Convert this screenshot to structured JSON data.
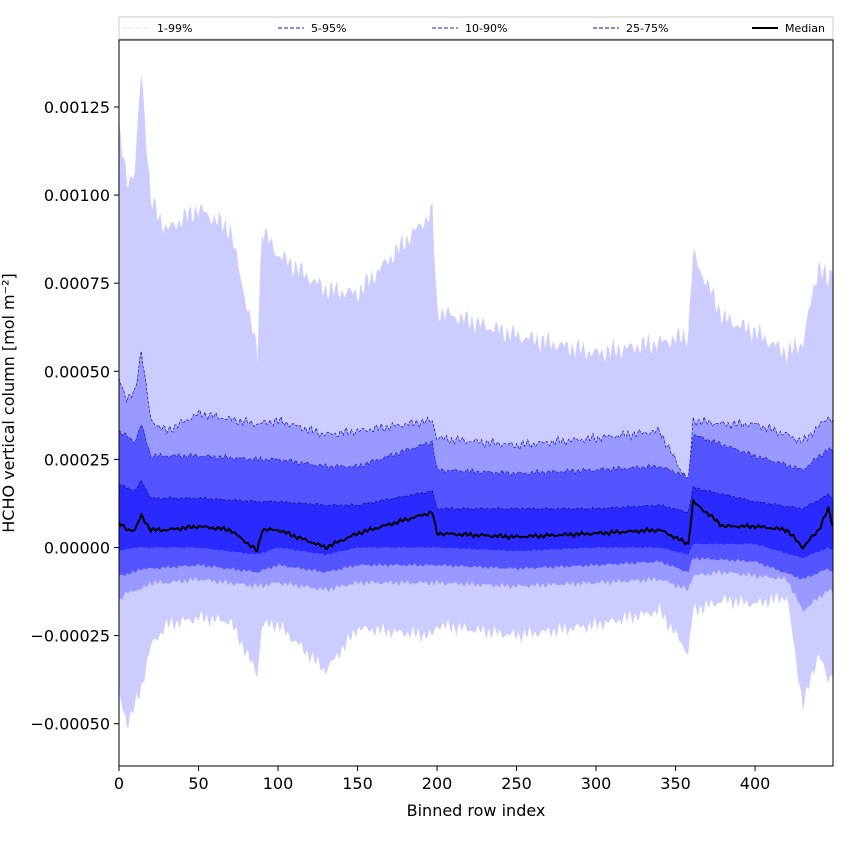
{
  "chart_data": {
    "type": "area",
    "xlabel": "Binned row index",
    "ylabel": "HCHO vertical column [mol m⁻²]",
    "xlim": [
      0,
      449
    ],
    "ylim": [
      -0.00062,
      0.00144
    ],
    "x_ticks": [
      {
        "value": 0,
        "label": "0"
      },
      {
        "value": 50,
        "label": "50"
      },
      {
        "value": 100,
        "label": "100"
      },
      {
        "value": 150,
        "label": "150"
      },
      {
        "value": 200,
        "label": "200"
      },
      {
        "value": 250,
        "label": "250"
      },
      {
        "value": 300,
        "label": "300"
      },
      {
        "value": 350,
        "label": "350"
      },
      {
        "value": 400,
        "label": "400"
      }
    ],
    "y_ticks": [
      {
        "value": 0.00125,
        "label": "0.00125"
      },
      {
        "value": 0.001,
        "label": "0.00100"
      },
      {
        "value": 0.00075,
        "label": "0.00075"
      },
      {
        "value": 0.0005,
        "label": "0.00050"
      },
      {
        "value": 0.00025,
        "label": "0.00025"
      },
      {
        "value": 0.0,
        "label": "0.00000"
      },
      {
        "value": -0.00025,
        "label": "−0.00025"
      },
      {
        "value": -0.0005,
        "label": "−0.00050"
      }
    ],
    "legend_position": "top, outside, full width",
    "bands": [
      {
        "name": "1-99%",
        "fill": "#ccccff",
        "line": "#d0d0ff",
        "x": [
          0,
          5,
          10,
          14,
          20,
          30,
          50,
          70,
          87,
          90,
          100,
          130,
          150,
          197,
          200,
          250,
          300,
          340,
          358,
          361,
          380,
          400,
          420,
          430,
          440,
          446,
          449
        ],
        "upper": [
          0.00118,
          0.00104,
          0.00106,
          0.00135,
          0.00098,
          0.0009,
          0.00096,
          0.0009,
          0.00055,
          0.0009,
          0.00083,
          0.00073,
          0.00072,
          0.00095,
          0.00067,
          0.0006,
          0.00055,
          0.00058,
          0.0006,
          0.00083,
          0.00065,
          0.00061,
          0.00055,
          0.00058,
          0.0008,
          0.00075,
          0.0008
        ],
        "lower": [
          -0.00042,
          -0.0005,
          -0.00045,
          -0.0004,
          -0.00028,
          -0.00022,
          -0.0002,
          -0.00021,
          -0.00036,
          -0.00022,
          -0.00022,
          -0.00035,
          -0.00023,
          -0.00025,
          -0.00022,
          -0.00025,
          -0.00022,
          -0.00018,
          -0.0003,
          -0.00018,
          -0.00015,
          -0.00016,
          -0.00014,
          -0.00045,
          -0.0003,
          -0.00038,
          -0.00035
        ]
      },
      {
        "name": "5-95%",
        "fill": "#9999ff",
        "line": "#1a1aaa",
        "x": [
          0,
          5,
          10,
          14,
          20,
          30,
          50,
          87,
          100,
          130,
          150,
          197,
          200,
          250,
          300,
          340,
          358,
          361,
          380,
          400,
          420,
          430,
          446,
          449
        ],
        "upper": [
          0.00048,
          0.00042,
          0.00044,
          0.00056,
          0.00036,
          0.00033,
          0.00038,
          0.00035,
          0.00036,
          0.00032,
          0.00033,
          0.00036,
          0.00031,
          0.00029,
          0.00031,
          0.00033,
          0.00018,
          0.00036,
          0.00035,
          0.00035,
          0.00032,
          0.0003,
          0.00037,
          0.00036
        ],
        "lower": [
          -0.00015,
          -0.00013,
          -0.00012,
          -0.00012,
          -0.0001,
          -0.0001,
          -9e-05,
          -0.00011,
          -0.0001,
          -0.00012,
          -0.0001,
          -0.0001,
          -0.0001,
          -0.00011,
          -0.0001,
          -9e-05,
          -0.00012,
          -8e-05,
          -7e-05,
          -8e-05,
          -9e-05,
          -0.00018,
          -0.00012,
          -0.00013
        ]
      },
      {
        "name": "10-90%",
        "fill": "#5555ff",
        "line": "#2222bb",
        "x": [
          0,
          10,
          14,
          20,
          50,
          87,
          100,
          130,
          150,
          197,
          200,
          250,
          300,
          340,
          358,
          361,
          400,
          430,
          446,
          449
        ],
        "upper": [
          0.00033,
          0.0003,
          0.00035,
          0.00026,
          0.00026,
          0.00025,
          0.00025,
          0.00023,
          0.00023,
          0.0003,
          0.00022,
          0.00021,
          0.00022,
          0.00023,
          0.0002,
          0.00032,
          0.00026,
          0.00022,
          0.00028,
          0.00027
        ],
        "lower": [
          -8e-05,
          -7e-05,
          -6e-05,
          -6e-05,
          -5e-05,
          -7e-05,
          -5e-05,
          -7e-05,
          -5e-05,
          -5e-05,
          -5e-05,
          -6e-05,
          -5e-05,
          -4e-05,
          -7e-05,
          -3e-05,
          -4e-05,
          -9e-05,
          -6e-05,
          -7e-05
        ]
      },
      {
        "name": "25-75%",
        "fill": "#2a2aff",
        "line": "#111188",
        "x": [
          0,
          10,
          14,
          20,
          50,
          87,
          100,
          130,
          150,
          197,
          200,
          250,
          300,
          340,
          358,
          361,
          400,
          430,
          446,
          449
        ],
        "upper": [
          0.00018,
          0.00016,
          0.00019,
          0.00014,
          0.00014,
          0.00013,
          0.00013,
          0.00012,
          0.00012,
          0.00016,
          0.00011,
          0.00011,
          0.00011,
          0.00012,
          0.0001,
          0.00017,
          0.00013,
          0.00011,
          0.00015,
          0.00014
        ],
        "lower": [
          -1e-05,
          0.0,
          0.0,
          0.0,
          0.0,
          -2e-05,
          0.0,
          -2e-05,
          0.0,
          0.0,
          0.0,
          -1e-05,
          0.0,
          0.0,
          -2e-05,
          1e-05,
          1e-05,
          -3e-05,
          0.0,
          -1e-05
        ]
      }
    ],
    "median": {
      "name": "Median",
      "color": "#000000",
      "x": [
        0,
        5,
        10,
        14,
        20,
        30,
        50,
        70,
        87,
        90,
        100,
        130,
        150,
        197,
        200,
        250,
        300,
        340,
        358,
        361,
        380,
        400,
        420,
        430,
        440,
        446,
        449
      ],
      "y": [
        7e-05,
        5e-05,
        5e-05,
        9e-05,
        5e-05,
        5e-05,
        6e-05,
        5e-05,
        -1e-05,
        5e-05,
        5e-05,
        0.0,
        4e-05,
        0.0001,
        4e-05,
        3e-05,
        4e-05,
        5e-05,
        1e-05,
        0.00013,
        6e-05,
        6e-05,
        5e-05,
        0.0,
        5e-05,
        0.00011,
        6e-05
      ]
    }
  }
}
